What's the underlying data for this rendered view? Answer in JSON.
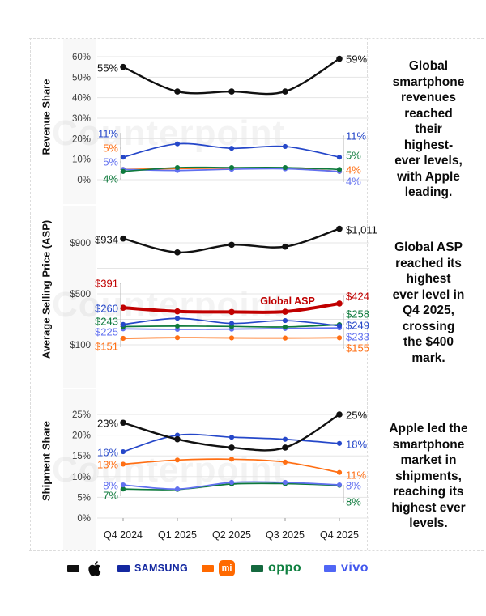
{
  "watermark": "Counterpoint",
  "x_categories": [
    "Q4 2024",
    "Q1 2025",
    "Q2 2025",
    "Q3 2025",
    "Q4 2025"
  ],
  "chart_data": [
    {
      "type": "line",
      "ylabel": "Revenue Share",
      "unit": "%",
      "ylim": [
        0,
        60
      ],
      "grid": true,
      "y_ticks": [
        "0%",
        "10%",
        "20%",
        "30%",
        "40%",
        "50%",
        "60%"
      ],
      "categories": [
        "Q4 2024",
        "Q1 2025",
        "Q2 2025",
        "Q3 2025",
        "Q4 2025"
      ],
      "series": [
        {
          "name": "Xiaomi",
          "color": "#ff6f14",
          "values": [
            5,
            5.4,
            5.7,
            5.6,
            4
          ],
          "first_label": "5%",
          "last_label": "4%"
        },
        {
          "name": "vivo",
          "color": "#6170f0",
          "values": [
            5,
            4.5,
            5.1,
            5.3,
            4
          ],
          "first_label": "5%",
          "last_label": "4%"
        },
        {
          "name": "OPPO",
          "color": "#0e7a3c",
          "values": [
            4,
            5.9,
            5.9,
            5.9,
            5
          ],
          "first_label": "4%",
          "last_label": "5%"
        },
        {
          "name": "Samsung",
          "color": "#2547c9",
          "values": [
            11,
            17.5,
            15.3,
            16.2,
            11
          ],
          "first_label": "11%",
          "last_label": "11%"
        },
        {
          "name": "Apple",
          "color": "#111111",
          "values": [
            55,
            43,
            43,
            43,
            59
          ],
          "first_label": "55%",
          "last_label": "59%"
        }
      ],
      "annotation": "Global\nsmartphone\nrevenues\nreached\ntheir\nhighest-\never levels,\nwith Apple\nleading."
    },
    {
      "type": "line",
      "ylabel": "Average Selling Price (ASP)",
      "unit": "USD",
      "ylim": [
        100,
        900
      ],
      "grid": true,
      "y_ticks": [
        "$100",
        "$500",
        "$900"
      ],
      "categories": [
        "Q4 2024",
        "Q1 2025",
        "Q2 2025",
        "Q3 2025",
        "Q4 2025"
      ],
      "series": [
        {
          "name": "Xiaomi",
          "color": "#ff6f14",
          "values": [
            151,
            156,
            154,
            153,
            155
          ],
          "first_label": "$151",
          "last_label": "$155"
        },
        {
          "name": "vivo",
          "color": "#6170f0",
          "values": [
            225,
            221,
            223,
            228,
            233
          ],
          "first_label": "$225",
          "last_label": "$233"
        },
        {
          "name": "OPPO",
          "color": "#0e7a3c",
          "values": [
            243,
            247,
            244,
            240,
            258
          ],
          "first_label": "$243",
          "last_label": "$258"
        },
        {
          "name": "Samsung",
          "color": "#2547c9",
          "values": [
            260,
            308,
            268,
            290,
            249
          ],
          "first_label": "$260",
          "last_label": "$249"
        },
        {
          "name": "Global ASP",
          "color": "#c00000",
          "values": [
            391,
            362,
            358,
            360,
            424
          ],
          "first_label": "$391",
          "last_label": "$424",
          "line_label": "Global ASP"
        },
        {
          "name": "Apple",
          "color": "#111111",
          "values": [
            934,
            825,
            885,
            870,
            1011
          ],
          "first_label": "$934",
          "last_label": "$1,011"
        }
      ],
      "annotation": "Global ASP\nreached its\nhighest\never level in\nQ4 2025,\ncrossing\nthe $400\nmark."
    },
    {
      "type": "line",
      "ylabel": "Shipment Share",
      "unit": "%",
      "ylim": [
        0,
        25
      ],
      "grid": true,
      "y_ticks": [
        "0%",
        "5%",
        "10%",
        "15%",
        "20%",
        "25%"
      ],
      "categories": [
        "Q4 2024",
        "Q1 2025",
        "Q2 2025",
        "Q3 2025",
        "Q4 2025"
      ],
      "series": [
        {
          "name": "OPPO",
          "color": "#0e7a3c",
          "values": [
            7,
            6.9,
            8.2,
            8.3,
            7.9
          ],
          "first_label": "7%",
          "last_label": "8%"
        },
        {
          "name": "vivo",
          "color": "#6170f0",
          "values": [
            8,
            7,
            8.6,
            8.6,
            8
          ],
          "first_label": "8%",
          "last_label": "8%"
        },
        {
          "name": "Xiaomi",
          "color": "#ff6f14",
          "values": [
            13,
            14,
            14.2,
            13.5,
            11
          ],
          "first_label": "13%",
          "last_label": "11%"
        },
        {
          "name": "Samsung",
          "color": "#2547c9",
          "values": [
            16,
            20,
            19.5,
            19,
            18
          ],
          "first_label": "16%",
          "last_label": "18%"
        },
        {
          "name": "Apple",
          "color": "#111111",
          "values": [
            23,
            19,
            17,
            17,
            25
          ],
          "first_label": "23%",
          "last_label": "25%"
        }
      ],
      "annotation": "Apple led the\nsmartphone\nmarket in\nshipments,\nreaching its\nhighest ever\nlevels."
    }
  ],
  "legend": {
    "items": [
      {
        "id": "apple",
        "label": "",
        "swatch": "#111111"
      },
      {
        "id": "samsung",
        "label": "SAMSUNG",
        "swatch": "#1428a0",
        "text_color": "#1428a0"
      },
      {
        "id": "xiaomi",
        "label": "mi",
        "swatch": "#ff6900",
        "logo_bg": "#ff6900"
      },
      {
        "id": "oppo",
        "label": "oppo",
        "swatch": "#15693f",
        "text_color": "#0f8040"
      },
      {
        "id": "vivo",
        "label": "vivo",
        "swatch": "#5066f5",
        "text_color": "#4157ee"
      }
    ]
  }
}
